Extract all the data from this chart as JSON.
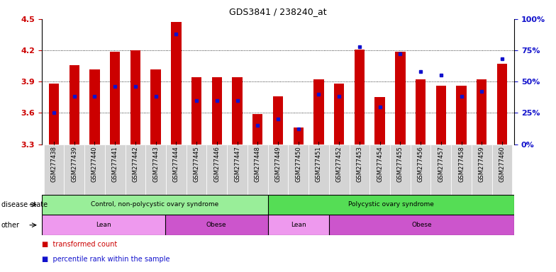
{
  "title": "GDS3841 / 238240_at",
  "samples": [
    "GSM277438",
    "GSM277439",
    "GSM277440",
    "GSM277441",
    "GSM277442",
    "GSM277443",
    "GSM277444",
    "GSM277445",
    "GSM277446",
    "GSM277447",
    "GSM277448",
    "GSM277449",
    "GSM277450",
    "GSM277451",
    "GSM277452",
    "GSM277453",
    "GSM277454",
    "GSM277455",
    "GSM277456",
    "GSM277457",
    "GSM277458",
    "GSM277459",
    "GSM277460"
  ],
  "transformed_count": [
    3.88,
    4.06,
    4.02,
    4.19,
    4.2,
    4.02,
    4.47,
    3.94,
    3.94,
    3.94,
    3.59,
    3.76,
    3.46,
    3.92,
    3.88,
    4.21,
    3.75,
    4.19,
    3.92,
    3.86,
    3.86,
    3.92,
    4.07
  ],
  "percentile": [
    25,
    38,
    38,
    46,
    46,
    38,
    88,
    35,
    35,
    35,
    15,
    20,
    12,
    40,
    38,
    78,
    30,
    72,
    58,
    55,
    38,
    42,
    68
  ],
  "ylim_left": [
    3.3,
    4.5
  ],
  "ylim_right": [
    0,
    100
  ],
  "yticks_left": [
    3.3,
    3.6,
    3.9,
    4.2,
    4.5
  ],
  "yticks_right": [
    0,
    25,
    50,
    75,
    100
  ],
  "bar_color": "#cc0000",
  "dot_color": "#1111cc",
  "bar_width": 0.5,
  "disease_state_groups": [
    {
      "label": "Control, non-polycystic ovary syndrome",
      "start": 0,
      "end": 11,
      "color": "#99ee99"
    },
    {
      "label": "Polycystic ovary syndrome",
      "start": 11,
      "end": 23,
      "color": "#55dd55"
    }
  ],
  "ds_separator": 11,
  "other_groups": [
    {
      "label": "Lean",
      "start": 0,
      "end": 6,
      "color": "#ee99ee"
    },
    {
      "label": "Obese",
      "start": 6,
      "end": 11,
      "color": "#cc55cc"
    },
    {
      "label": "Lean",
      "start": 11,
      "end": 14,
      "color": "#ee99ee"
    },
    {
      "label": "Obese",
      "start": 14,
      "end": 23,
      "color": "#cc55cc"
    }
  ],
  "other_separators": [
    6,
    11,
    14
  ],
  "disease_state_label": "disease state",
  "other_label": "other",
  "legend_items": [
    {
      "label": "transformed count",
      "color": "#cc0000"
    },
    {
      "label": "percentile rank within the sample",
      "color": "#1111cc"
    }
  ],
  "tick_label_fontsize": 6.0,
  "axis_color_left": "#cc0000",
  "axis_color_right": "#1111cc",
  "grid_ticks": [
    3.6,
    3.9,
    4.2
  ]
}
